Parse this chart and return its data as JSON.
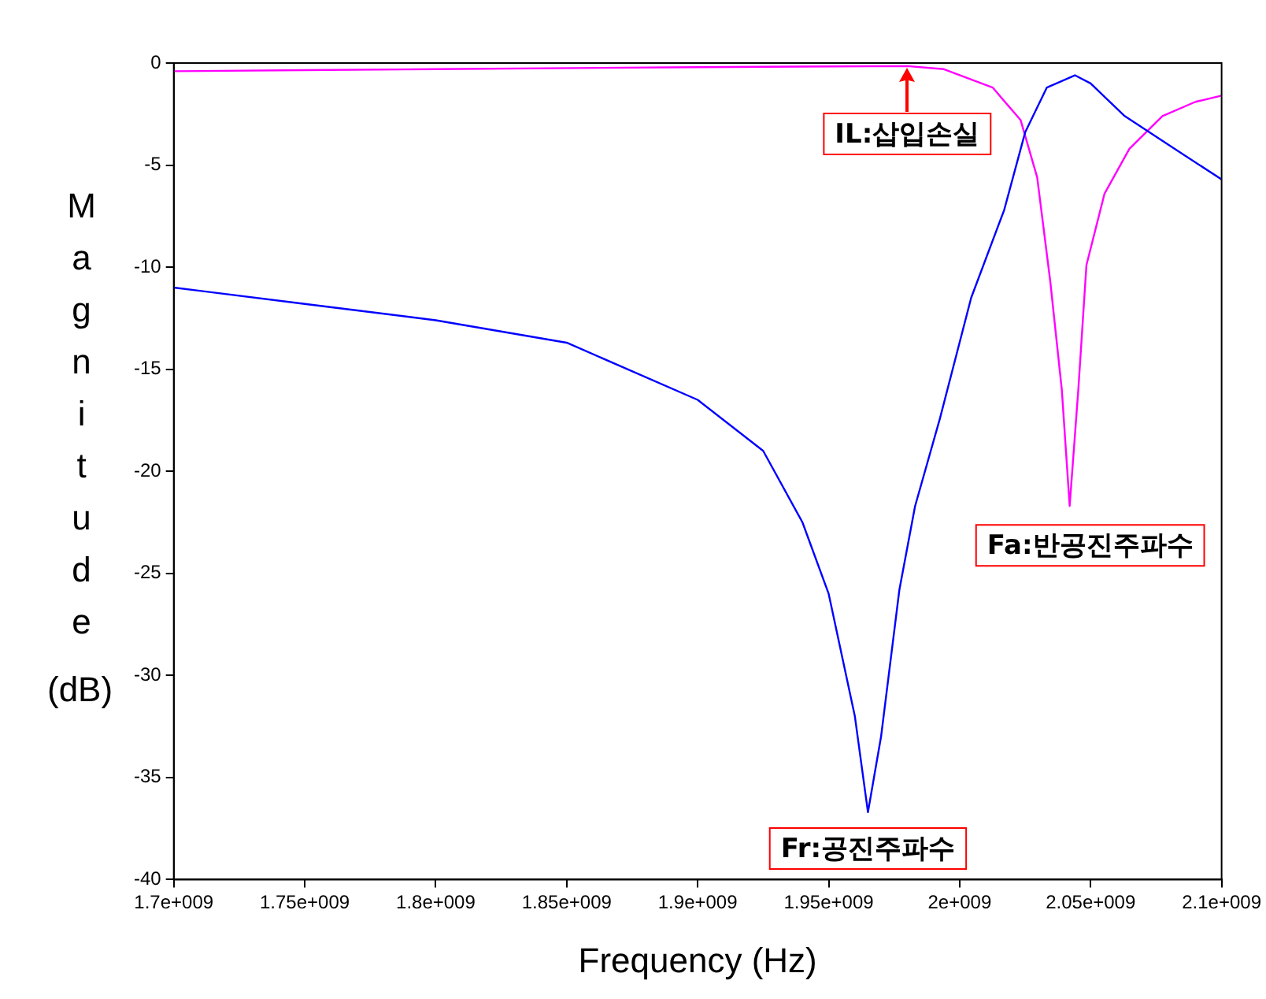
{
  "chart_data": {
    "type": "line",
    "xlabel": "Frequency (Hz)",
    "ylabel": "Magnitude (dB)",
    "xlim": [
      1700000000,
      2100000000
    ],
    "xticks": [
      {
        "value": 1700000000,
        "label": "1.7e+009"
      },
      {
        "value": 1750000000,
        "label": "1.75e+009"
      },
      {
        "value": 1800000000,
        "label": "1.8e+009"
      },
      {
        "value": 1850000000,
        "label": "1.85e+009"
      },
      {
        "value": 1900000000,
        "label": "1.9e+009"
      },
      {
        "value": 1950000000,
        "label": "1.95e+009"
      },
      {
        "value": 2000000000,
        "label": "2e+009"
      },
      {
        "value": 2050000000,
        "label": "2.05e+009"
      },
      {
        "value": 2100000000,
        "label": "2.1e+009"
      }
    ],
    "ylim": [
      -40,
      0
    ],
    "yticks": [
      0,
      -5,
      -10,
      -15,
      -20,
      -25,
      -30,
      -35,
      -40
    ],
    "grid": false,
    "legend": false,
    "marker": "none",
    "line_style": "solid",
    "series": [
      {
        "color": "#0000ff",
        "x": [
          1700000000,
          1750000000,
          1800000000,
          1850000000,
          1900000000,
          1925000000,
          1940000000,
          1950000000,
          1960000000,
          1965000000,
          1970000000,
          1977000000,
          1983000000,
          1992500000,
          2004400000,
          2017000000,
          2025000000,
          2033300000,
          2044000000,
          2050000000,
          2063000000,
          2082000000,
          2100000000
        ],
        "values": [
          -11,
          -11.8,
          -12.6,
          -13.7,
          -16.5,
          -19,
          -22.5,
          -26,
          -32,
          -36.7,
          -33,
          -25.8,
          -21.7,
          -17.4,
          -11.5,
          -7.2,
          -3.4,
          -1.2,
          -0.6,
          -1,
          -2.6,
          -4.2,
          -5.7
        ]
      },
      {
        "color": "#ff00ff",
        "x": [
          1700000000,
          1750000000,
          1800000000,
          1900000000,
          1980000000,
          1994000000,
          2012600000,
          2023300000,
          2029600000,
          2034600000,
          2039000000,
          2042000000,
          2045300000,
          2048400000,
          2055300000,
          2064800000,
          2077400000,
          2090000000,
          2100000000
        ],
        "values": [
          -0.4,
          -0.35,
          -0.3,
          -0.2,
          -0.15,
          -0.3,
          -1.2,
          -2.8,
          -5.6,
          -10.7,
          -16,
          -21.7,
          -16,
          -9.9,
          -6.4,
          -4.2,
          -2.6,
          -1.9,
          -1.6
        ]
      }
    ],
    "annotations": [
      {
        "text": "IL:삽입손실",
        "x": 1980000000,
        "y": -0.15
      },
      {
        "text": "Fa:반공진주파수",
        "x": 2042000000,
        "y": -21.7
      },
      {
        "text": "Fr:공진주파수",
        "x": 1965000000,
        "y": -36.7
      }
    ]
  }
}
